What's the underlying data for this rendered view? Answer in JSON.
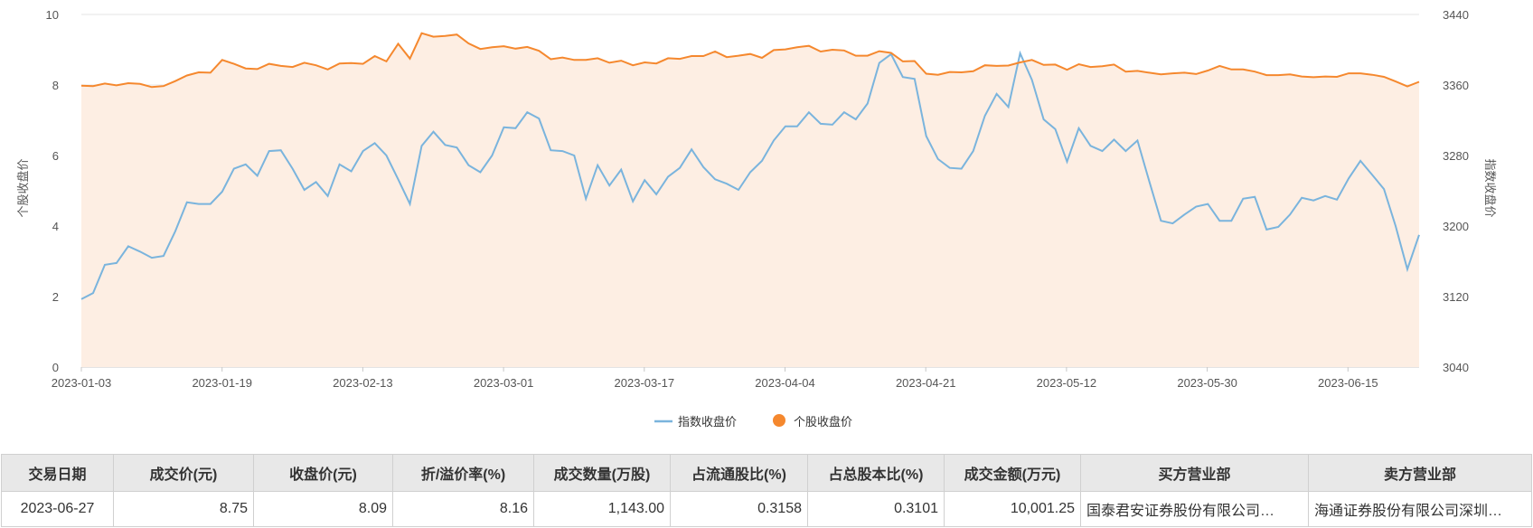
{
  "chart_data": {
    "type": "line",
    "x_ticks": [
      "2023-01-03",
      "2023-01-19",
      "2023-02-13",
      "2023-03-01",
      "2023-03-17",
      "2023-04-04",
      "2023-04-21",
      "2023-05-12",
      "2023-05-30",
      "2023-06-15"
    ],
    "left_axis": {
      "label": "个股收盘价",
      "ylim": [
        0,
        10
      ],
      "ticks": [
        "0",
        "2",
        "4",
        "6",
        "8",
        "10"
      ]
    },
    "right_axis": {
      "label": "指数收盘价",
      "ylim": [
        3040,
        3440
      ],
      "ticks": [
        "3040",
        "3120",
        "3200",
        "3280",
        "3360",
        "3440"
      ]
    },
    "series": [
      {
        "name": "指数收盘价",
        "axis": "right",
        "color": "#7ab4dd",
        "values": [
          3117,
          3124,
          3156,
          3158,
          3177,
          3171,
          3164,
          3166,
          3194,
          3227,
          3225,
          3225,
          3239,
          3265,
          3270,
          3257,
          3285,
          3286,
          3265,
          3241,
          3250,
          3234,
          3270,
          3262,
          3285,
          3294,
          3280,
          3253,
          3225,
          3291,
          3307,
          3292,
          3289,
          3269,
          3261,
          3280,
          3312,
          3311,
          3329,
          3322,
          3286,
          3285,
          3280,
          3231,
          3269,
          3246,
          3264,
          3228,
          3252,
          3236,
          3256,
          3266,
          3287,
          3267,
          3253,
          3248,
          3241,
          3261,
          3274,
          3297,
          3313,
          3313,
          3329,
          3316,
          3315,
          3329,
          3321,
          3339,
          3385,
          3395,
          3369,
          3367,
          3302,
          3276,
          3266,
          3265,
          3285,
          3325,
          3350,
          3335,
          3396,
          3366,
          3321,
          3310,
          3273,
          3311,
          3291,
          3285,
          3298,
          3285,
          3297,
          3251,
          3206,
          3203,
          3213,
          3222,
          3225,
          3206,
          3206,
          3231,
          3233,
          3196,
          3199,
          3213,
          3232,
          3229,
          3234,
          3230,
          3254,
          3274,
          3258,
          3242,
          3200,
          3151,
          3190
        ]
      },
      {
        "name": "个股收盘价",
        "axis": "left",
        "color": "#f5882e",
        "values": [
          7.98,
          7.97,
          8.04,
          7.99,
          8.05,
          8.03,
          7.94,
          7.97,
          8.11,
          8.27,
          8.36,
          8.35,
          8.71,
          8.6,
          8.47,
          8.45,
          8.6,
          8.54,
          8.51,
          8.63,
          8.56,
          8.44,
          8.61,
          8.62,
          8.6,
          8.82,
          8.67,
          9.17,
          8.75,
          9.47,
          9.37,
          9.39,
          9.43,
          9.18,
          9.02,
          9.07,
          9.1,
          9.03,
          9.08,
          8.97,
          8.73,
          8.78,
          8.71,
          8.71,
          8.76,
          8.63,
          8.69,
          8.56,
          8.64,
          8.61,
          8.76,
          8.74,
          8.82,
          8.82,
          8.95,
          8.79,
          8.83,
          8.88,
          8.77,
          8.99,
          9.01,
          9.07,
          9.11,
          8.95,
          9.0,
          8.98,
          8.83,
          8.83,
          8.96,
          8.91,
          8.67,
          8.68,
          8.32,
          8.29,
          8.37,
          8.36,
          8.39,
          8.56,
          8.54,
          8.55,
          8.64,
          8.71,
          8.57,
          8.58,
          8.43,
          8.59,
          8.51,
          8.53,
          8.58,
          8.38,
          8.4,
          8.35,
          8.3,
          8.33,
          8.35,
          8.31,
          8.41,
          8.54,
          8.44,
          8.44,
          8.38,
          8.28,
          8.28,
          8.3,
          8.24,
          8.22,
          8.24,
          8.23,
          8.33,
          8.33,
          8.29,
          8.23,
          8.1,
          7.96,
          8.09
        ]
      }
    ],
    "legend_position": "bottom-center",
    "grid": true
  },
  "legend": {
    "index_label": "指数收盘价",
    "stock_label": "个股收盘价"
  },
  "table": {
    "headers": [
      "交易日期",
      "成交价(元)",
      "收盘价(元)",
      "折/溢价率(%)",
      "成交数量(万股)",
      "占流通股比(%)",
      "占总股本比(%)",
      "成交金额(万元)",
      "买方营业部",
      "卖方营业部"
    ],
    "rows": [
      [
        "2023-06-27",
        "8.75",
        "8.09",
        "8.16",
        "1,143.00",
        "0.3158",
        "0.3101",
        "10,001.25",
        "国泰君安证券股份有限公司…",
        "海通证券股份有限公司深圳…"
      ]
    ]
  }
}
